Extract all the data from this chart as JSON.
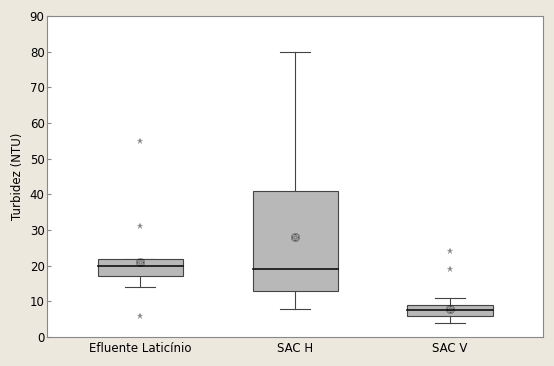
{
  "categories": [
    "Efluente Laticínio",
    "SAC H",
    "SAC V"
  ],
  "boxes": [
    {
      "label": "Efluente Laticínio",
      "q1": 17,
      "median": 20,
      "q3": 22,
      "whisker_low": 14,
      "whisker_high": 22,
      "mean": 21,
      "outliers": [
        6,
        31,
        55
      ]
    },
    {
      "label": "SAC H",
      "q1": 13,
      "median": 19,
      "q3": 41,
      "whisker_low": 8,
      "whisker_high": 80,
      "mean": 28,
      "outliers": []
    },
    {
      "label": "SAC V",
      "q1": 6,
      "median": 7.5,
      "q3": 9,
      "whisker_low": 4,
      "whisker_high": 11,
      "mean": 8,
      "outliers": [
        19,
        24
      ]
    }
  ],
  "ylabel": "Turbidez (NTU)",
  "ylim": [
    0,
    90
  ],
  "yticks": [
    0,
    10,
    20,
    30,
    40,
    50,
    60,
    70,
    80,
    90
  ],
  "box_color": "#b8b8b8",
  "box_edge_color": "#444444",
  "whisker_color": "#444444",
  "median_color": "#111111",
  "outlier_color": "#888888",
  "background_color": "#ede8de",
  "plot_bg_color": "#ffffff",
  "box_width": 0.55,
  "font_size": 8.5,
  "border_color": "#888888"
}
